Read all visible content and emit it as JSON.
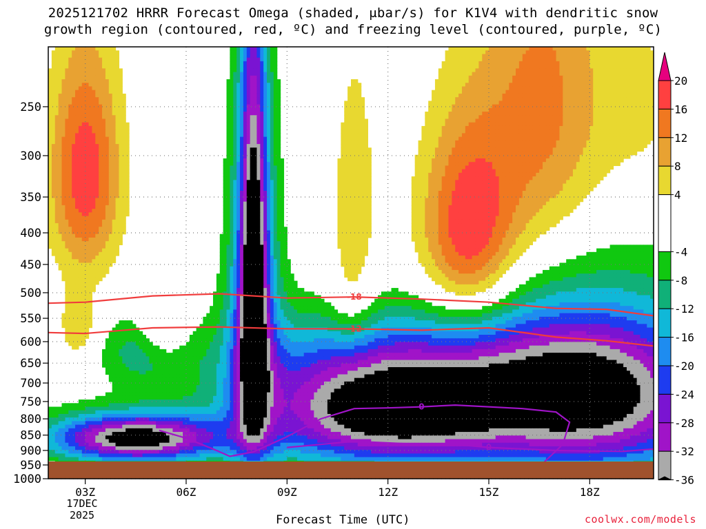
{
  "title_line1": "2025121702 HRRR Forecast Omega (shaded, μbar/s) for K1V4 with dendritic snow",
  "title_line2": "growth region (contoured, red, ºC) and freezing level (contoured, purple, ºC)",
  "credit": "coolwx.com/models",
  "chart_data": {
    "type": "heatmap",
    "title": "2025121702 HRRR Forecast Omega (shaded, μbar/s) for K1V4 with dendritic snow growth region (contoured, red, ºC) and freezing level (contoured, purple, ºC)",
    "xlabel": "Forecast Time (UTC)",
    "ylabel": "",
    "x_ticks": [
      "03Z",
      "06Z",
      "09Z",
      "12Z",
      "15Z",
      "18Z"
    ],
    "x_tick_sublabels": [
      "17DEC",
      "2025"
    ],
    "x_range_hours_utc": [
      1.9,
      19.9
    ],
    "y_ticks": [
      250,
      300,
      350,
      400,
      450,
      500,
      550,
      600,
      650,
      700,
      750,
      800,
      850,
      900,
      950,
      1000
    ],
    "y_range_hpa": [
      200,
      1000
    ],
    "y_scale": "log-pressure (inverted)",
    "grid": true,
    "colorbar": {
      "ticks": [
        20,
        16,
        12,
        8,
        4,
        -4,
        -8,
        -12,
        -16,
        -20,
        -24,
        -28,
        -32,
        -36
      ],
      "bins": [
        {
          "range": [
            20,
            24
          ],
          "color": "#e6007e"
        },
        {
          "range": [
            16,
            20
          ],
          "color": "#ff4040"
        },
        {
          "range": [
            12,
            16
          ],
          "color": "#f07820"
        },
        {
          "range": [
            8,
            12
          ],
          "color": "#e8a232"
        },
        {
          "range": [
            4,
            8
          ],
          "color": "#e8d830"
        },
        {
          "range": [
            -4,
            4
          ],
          "color": "#ffffff"
        },
        {
          "range": [
            -8,
            -4
          ],
          "color": "#10c810"
        },
        {
          "range": [
            -12,
            -8
          ],
          "color": "#10b078"
        },
        {
          "range": [
            -16,
            -12
          ],
          "color": "#10b8d8"
        },
        {
          "range": [
            -20,
            -16
          ],
          "color": "#1e8cf0"
        },
        {
          "range": [
            -24,
            -20
          ],
          "color": "#1e3cf0"
        },
        {
          "range": [
            -28,
            -24
          ],
          "color": "#7a14d2"
        },
        {
          "range": [
            -32,
            -28
          ],
          "color": "#a014c8"
        },
        {
          "range": [
            -36,
            -32
          ],
          "color": "#aaaaaa"
        },
        {
          "range": [
            -40,
            -36
          ],
          "color": "#000000"
        }
      ]
    },
    "contours": [
      {
        "label": "-18",
        "color": "#f03c3c",
        "points": [
          [
            1.9,
            520
          ],
          [
            3.0,
            518
          ],
          [
            5.0,
            506
          ],
          [
            7.0,
            502
          ],
          [
            9.0,
            510
          ],
          [
            11.0,
            508
          ],
          [
            13.0,
            512
          ],
          [
            15.0,
            518
          ],
          [
            17.0,
            530
          ],
          [
            18.5,
            532
          ],
          [
            19.9,
            545
          ]
        ]
      },
      {
        "label": "-12",
        "color": "#f03c3c",
        "points": [
          [
            1.9,
            580
          ],
          [
            3.0,
            582
          ],
          [
            5.0,
            570
          ],
          [
            7.0,
            568
          ],
          [
            9.0,
            572
          ],
          [
            11.0,
            572
          ],
          [
            13.0,
            575
          ],
          [
            15.0,
            570
          ],
          [
            17.0,
            590
          ],
          [
            18.5,
            598
          ],
          [
            19.9,
            610
          ]
        ]
      },
      {
        "label": "0",
        "color": "#a014c8",
        "points": [
          [
            5.2,
            835
          ],
          [
            6.0,
            860
          ],
          [
            6.8,
            895
          ],
          [
            7.3,
            920
          ],
          [
            8.0,
            905
          ],
          [
            9.0,
            855
          ],
          [
            10.0,
            800
          ],
          [
            11.0,
            770
          ],
          [
            12.0,
            768
          ],
          [
            13.0,
            765
          ],
          [
            14.0,
            760
          ],
          [
            15.0,
            765
          ],
          [
            16.0,
            770
          ],
          [
            17.0,
            780
          ],
          [
            17.4,
            810
          ],
          [
            17.2,
            880
          ],
          [
            16.6,
            945
          ],
          [
            15.9,
            960
          ]
        ]
      },
      {
        "label": "0",
        "color": "#a014c8",
        "points": [
          [
            9.0,
            890
          ],
          [
            10.0,
            880
          ],
          [
            11.0,
            870
          ],
          [
            12.0,
            875
          ],
          [
            13.0,
            880
          ],
          [
            14.0,
            880
          ],
          [
            15.0,
            890
          ],
          [
            16.0,
            895
          ],
          [
            17.0,
            900
          ],
          [
            18.0,
            902
          ],
          [
            19.0,
            903
          ],
          [
            19.9,
            895
          ]
        ]
      }
    ]
  }
}
